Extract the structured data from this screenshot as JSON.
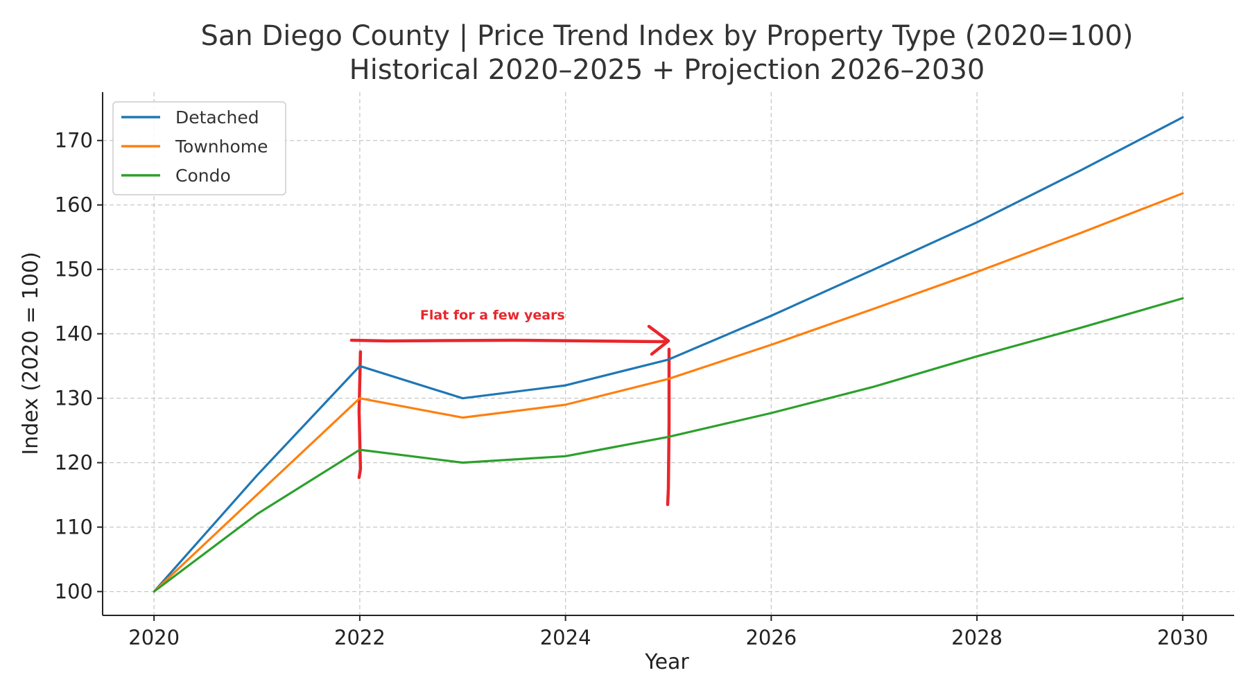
{
  "chart_data": {
    "type": "line",
    "title": [
      "San Diego County | Price Trend Index by Property Type (2020=100)",
      "Historical 2020–2025 + Projection 2026–2030"
    ],
    "xlabel": "Year",
    "ylabel": "Index (2020 = 100)",
    "x": [
      2020,
      2021,
      2022,
      2023,
      2024,
      2025,
      2026,
      2027,
      2028,
      2029,
      2030
    ],
    "xlim": [
      2019.5,
      2030.5
    ],
    "ylim": [
      96.3,
      177.5
    ],
    "xticks": [
      2020,
      2022,
      2024,
      2026,
      2028,
      2030
    ],
    "yticks": [
      100,
      110,
      120,
      130,
      140,
      150,
      160,
      170
    ],
    "grid": true,
    "legend_position": "top-left",
    "series": [
      {
        "name": "Detached",
        "color": "#1f77b4",
        "values": [
          100,
          118,
          135,
          130,
          132,
          136,
          142.8,
          150,
          157.3,
          165.3,
          173.6
        ]
      },
      {
        "name": "Townhome",
        "color": "#ff7f0e",
        "values": [
          100,
          115,
          130,
          127,
          129,
          133,
          138.3,
          143.9,
          149.6,
          155.6,
          161.8
        ]
      },
      {
        "name": "Condo",
        "color": "#2ca02c",
        "values": [
          100,
          112,
          122,
          120,
          121,
          124,
          127.7,
          131.8,
          136.5,
          140.9,
          145.5
        ]
      }
    ],
    "annotations": [
      {
        "text": "Flat for a few years",
        "color": "#e8262c",
        "from_x": 2022,
        "to_x": 2025,
        "arrow_y": 139,
        "text_y": 143
      }
    ]
  }
}
